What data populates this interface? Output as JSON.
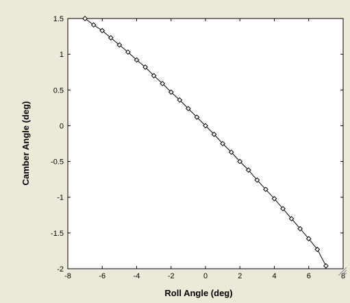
{
  "colors": {
    "window_background": "#ece9d8",
    "plot_background": "#ffffff",
    "line": "#000000",
    "marker_fill": "#ffffff"
  },
  "chart_data": {
    "type": "line",
    "xlabel": "Roll Angle (deg)",
    "ylabel": "Camber Angle (deg)",
    "xlim": [
      -8,
      8
    ],
    "ylim": [
      -2,
      1.5
    ],
    "xticks": [
      -8,
      -6,
      -4,
      -2,
      0,
      2,
      4,
      6,
      8
    ],
    "yticks": [
      1.5,
      1,
      0.5,
      0,
      -0.5,
      -1,
      -1.5,
      -2
    ],
    "xtick_labels": [
      "-8",
      "-6",
      "-4",
      "-2",
      "0",
      "2",
      "4",
      "6",
      "8"
    ],
    "ytick_labels": [
      "1.5",
      "1",
      "0.5",
      "0",
      "-0.5",
      "-1",
      "-1.5",
      "-2"
    ],
    "grid": false,
    "legend": false,
    "marker": "diamond",
    "series": [
      {
        "x": [
          -7.0,
          -6.5,
          -6.0,
          -5.5,
          -5.0,
          -4.5,
          -4.0,
          -3.5,
          -3.0,
          -2.5,
          -2.0,
          -1.5,
          -1.0,
          -0.5,
          0.0,
          0.5,
          1.0,
          1.5,
          2.0,
          2.5,
          3.0,
          3.5,
          4.0,
          4.5,
          5.0,
          5.5,
          6.0,
          6.5,
          7.0
        ],
        "y": [
          1.5,
          1.41,
          1.33,
          1.23,
          1.13,
          1.03,
          0.92,
          0.82,
          0.7,
          0.59,
          0.47,
          0.36,
          0.24,
          0.12,
          0.0,
          -0.12,
          -0.25,
          -0.37,
          -0.5,
          -0.62,
          -0.76,
          -0.89,
          -1.02,
          -1.16,
          -1.3,
          -1.44,
          -1.58,
          -1.73,
          -1.96
        ]
      }
    ]
  }
}
